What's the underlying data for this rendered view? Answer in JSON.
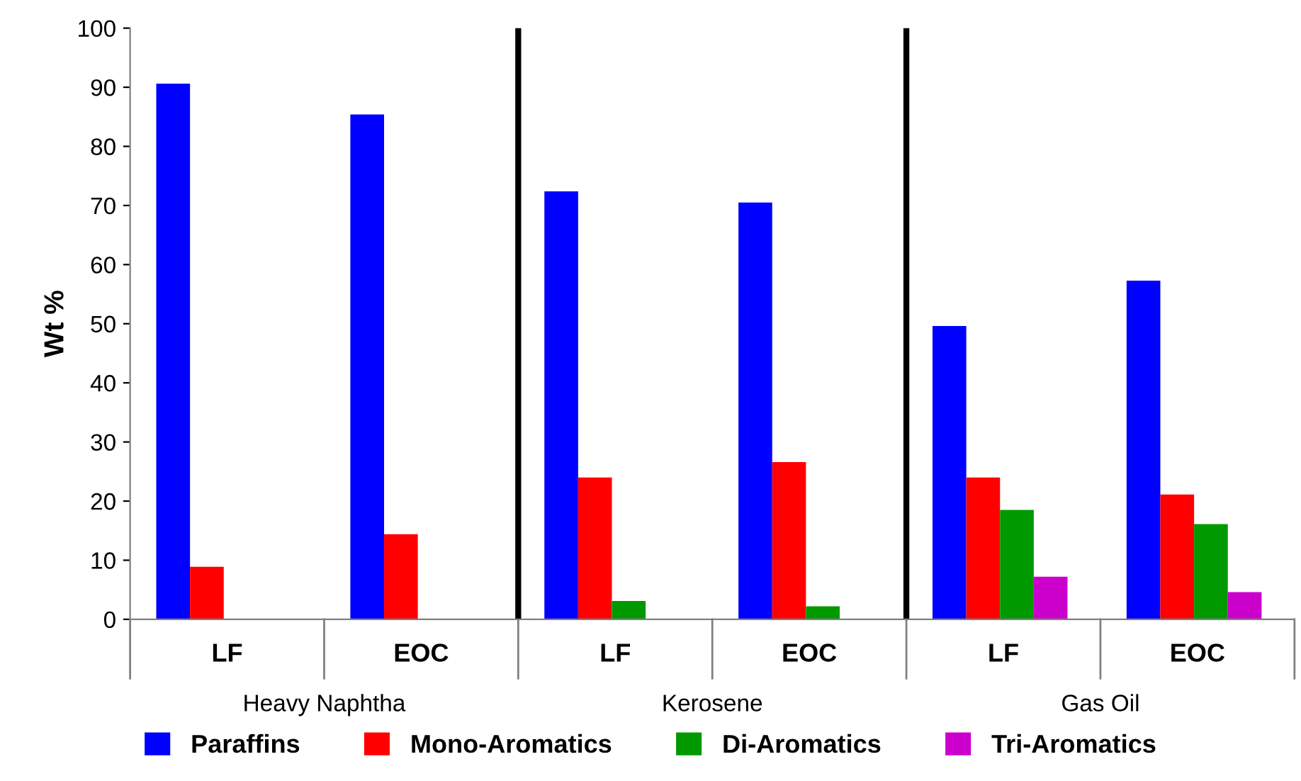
{
  "chart_data": {
    "type": "bar",
    "ylabel": "Wt %",
    "categories": [
      "LF",
      "EOC",
      "LF",
      "EOC",
      "LF",
      "EOC"
    ],
    "series": [
      {
        "name": "Paraffins",
        "color": "#0000ff",
        "values": [
          90.6,
          85.4,
          72.4,
          70.5,
          49.6,
          57.3
        ]
      },
      {
        "name": "Mono-Aromatics",
        "color": "#ff0000",
        "values": [
          8.9,
          14.4,
          24.0,
          26.6,
          24.0,
          21.1
        ]
      },
      {
        "name": "Di-Aromatics",
        "color": "#009900",
        "values": [
          null,
          null,
          3.1,
          2.2,
          18.5,
          16.1
        ]
      },
      {
        "name": "Tri-Aromatics",
        "color": "#cc00cc",
        "values": [
          null,
          null,
          null,
          null,
          7.2,
          4.6
        ]
      }
    ],
    "annotations": [
      "Heavy Naphtha",
      "Kerosene",
      "Gas Oil"
    ],
    "ylim": [
      0,
      100
    ],
    "yticks": [
      0,
      10,
      20,
      30,
      40,
      50,
      60,
      70,
      80,
      90,
      100
    ],
    "grid": false,
    "legend": "bottom"
  }
}
